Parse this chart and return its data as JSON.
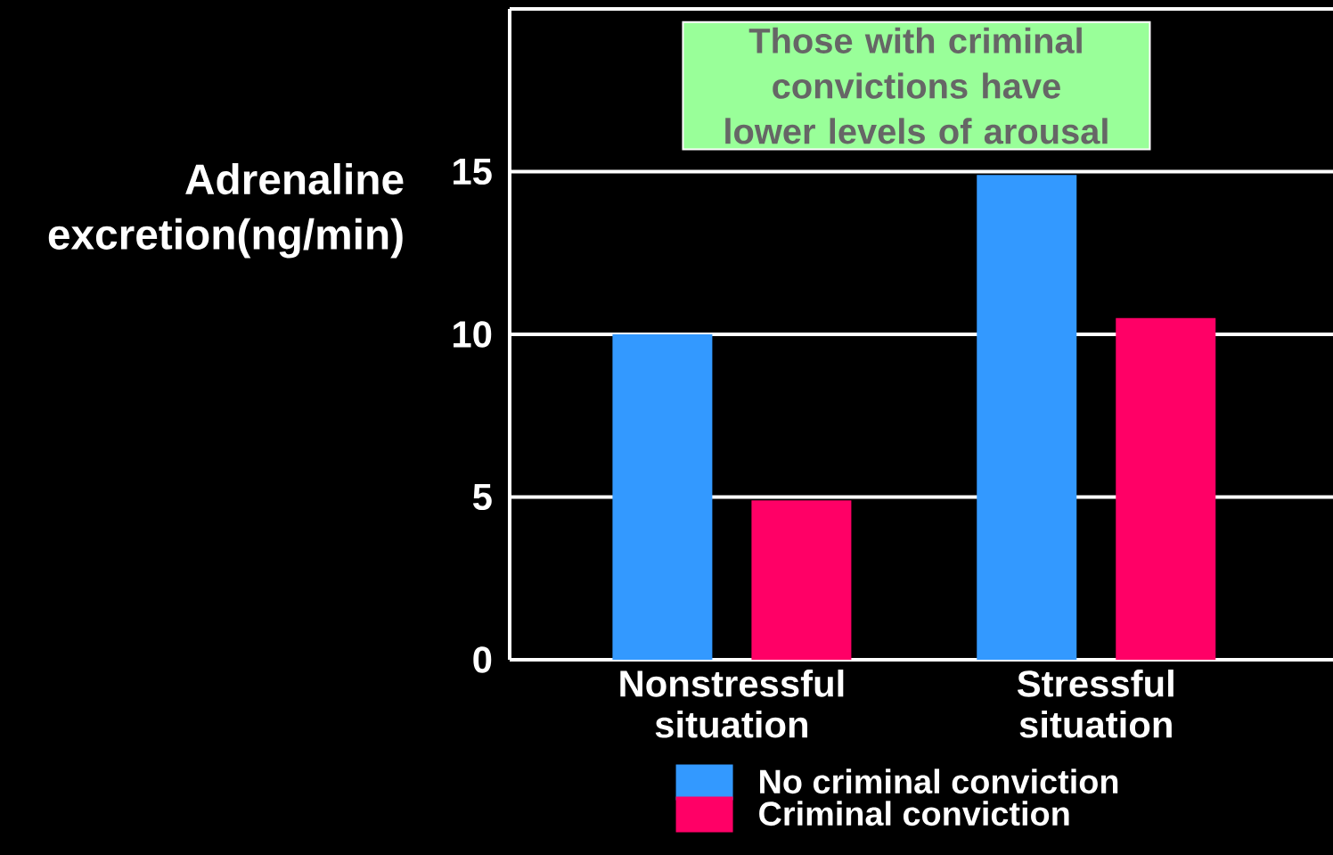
{
  "chart_data": {
    "type": "bar",
    "ylabel": "Adrenaline excretion(ng/min)",
    "annotations": [
      "Those with criminal convictions have lower levels of arousal"
    ],
    "categories": [
      "Nonstressful situation",
      "Stressful situation"
    ],
    "series": [
      {
        "name": "No criminal conviction",
        "color": "#3399ff",
        "values": [
          10,
          14.9
        ]
      },
      {
        "name": "Criminal conviction",
        "color": "#ff0066",
        "values": [
          4.9,
          10.5
        ]
      }
    ],
    "ylim": [
      0,
      20
    ],
    "yticks": [
      0,
      5,
      10,
      15
    ],
    "grid": "y",
    "legend": "bottom"
  }
}
